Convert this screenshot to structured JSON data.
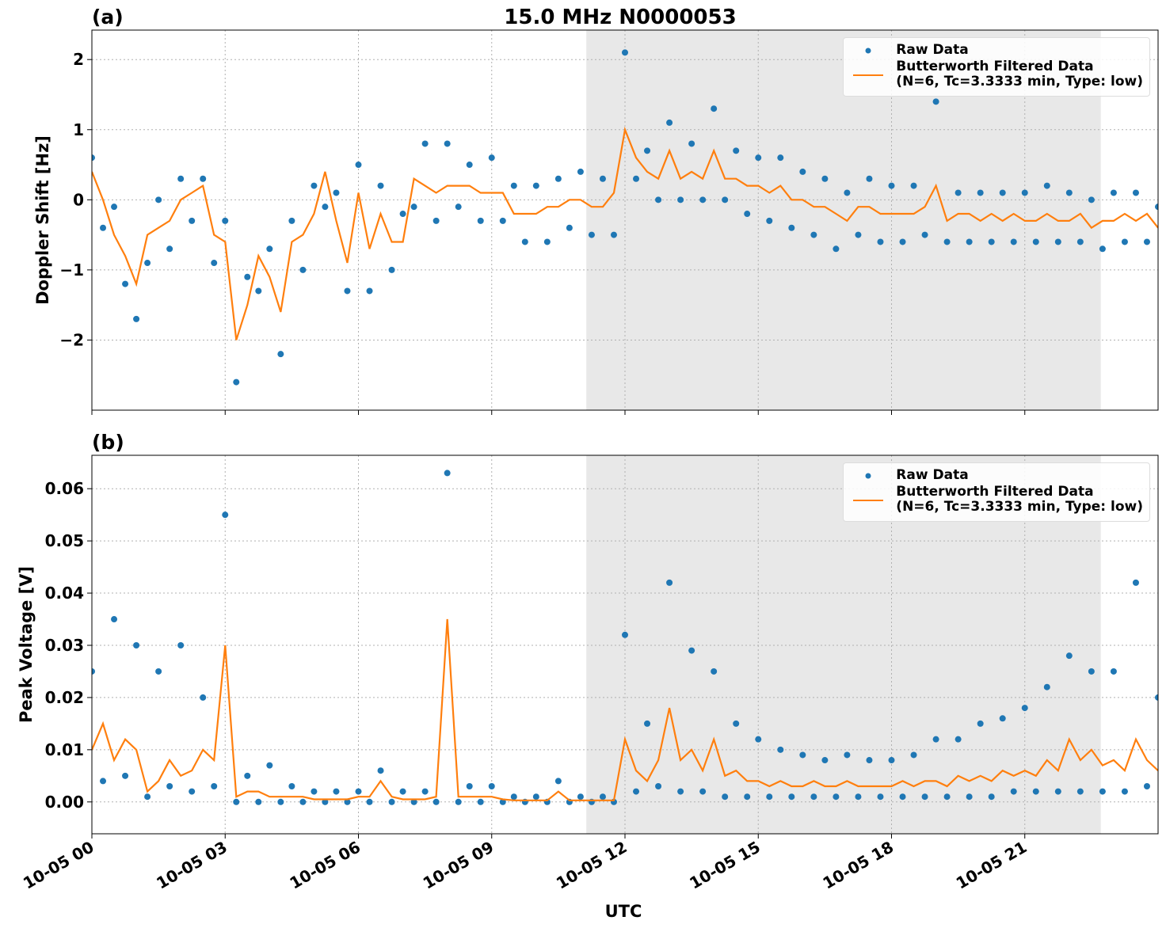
{
  "chart_data": [
    {
      "type": "scatter_line",
      "title": "15.0 MHz N0000053",
      "panel_label": "(a)",
      "ylabel": "Doppler Shift [Hz]",
      "x": [
        0,
        0.25,
        0.5,
        0.75,
        1,
        1.25,
        1.5,
        1.75,
        2,
        2.25,
        2.5,
        2.75,
        3,
        3.25,
        3.5,
        3.75,
        4,
        4.25,
        4.5,
        4.75,
        5,
        5.25,
        5.5,
        5.75,
        6,
        6.25,
        6.5,
        6.75,
        7,
        7.25,
        7.5,
        7.75,
        8,
        8.25,
        8.5,
        8.75,
        9,
        9.25,
        9.5,
        9.75,
        10,
        10.25,
        10.5,
        10.75,
        11,
        11.25,
        11.5,
        11.75,
        12,
        12.25,
        12.5,
        12.75,
        13,
        13.25,
        13.5,
        13.75,
        14,
        14.25,
        14.5,
        14.75,
        15,
        15.25,
        15.5,
        15.75,
        16,
        16.25,
        16.5,
        16.75,
        17,
        17.25,
        17.5,
        17.75,
        18,
        18.25,
        18.5,
        18.75,
        19,
        19.25,
        19.5,
        19.75,
        20,
        20.25,
        20.5,
        20.75,
        21,
        21.25,
        21.5,
        21.75,
        22,
        22.25,
        22.5,
        22.75,
        23,
        23.25,
        23.5,
        23.75,
        24
      ],
      "series": [
        {
          "name": "Raw Data",
          "color": "#1f77b4",
          "style": "dots",
          "values": [
            0.6,
            -0.4,
            -0.1,
            -1.2,
            -1.7,
            -0.9,
            0.0,
            -0.7,
            0.3,
            -0.3,
            0.3,
            -0.9,
            -0.3,
            -2.6,
            -1.1,
            -1.3,
            -0.7,
            -2.2,
            -0.3,
            -1.0,
            0.2,
            -0.1,
            0.1,
            -1.3,
            0.5,
            -1.3,
            0.2,
            -1.0,
            -0.2,
            -0.1,
            0.8,
            -0.3,
            0.8,
            -0.1,
            0.5,
            -0.3,
            0.6,
            -0.3,
            0.2,
            -0.6,
            0.2,
            -0.6,
            0.3,
            -0.4,
            0.4,
            -0.5,
            0.3,
            -0.5,
            2.1,
            0.3,
            0.7,
            0.0,
            1.1,
            0.0,
            0.8,
            0.0,
            1.3,
            0.0,
            0.7,
            -0.2,
            0.6,
            -0.3,
            0.6,
            -0.4,
            0.4,
            -0.5,
            0.3,
            -0.7,
            0.1,
            -0.5,
            0.3,
            -0.6,
            0.2,
            -0.6,
            0.2,
            -0.5,
            1.4,
            -0.6,
            0.1,
            -0.6,
            0.1,
            -0.6,
            0.1,
            -0.6,
            0.1,
            -0.6,
            0.2,
            -0.6,
            0.1,
            -0.6,
            0.0,
            -0.7,
            0.1,
            -0.6,
            0.1,
            -0.6,
            -0.1
          ]
        },
        {
          "name": "Butterworth Filtered Data\n(N=6, Tc=3.3333 min, Type: low)",
          "color": "#ff7f0e",
          "style": "line",
          "values": [
            0.4,
            0.0,
            -0.5,
            -0.8,
            -1.2,
            -0.5,
            -0.4,
            -0.3,
            0.0,
            0.1,
            0.2,
            -0.5,
            -0.6,
            -2.0,
            -1.5,
            -0.8,
            -1.1,
            -1.6,
            -0.6,
            -0.5,
            -0.2,
            0.4,
            -0.3,
            -0.9,
            0.1,
            -0.7,
            -0.2,
            -0.6,
            -0.6,
            0.3,
            0.2,
            0.1,
            0.2,
            0.2,
            0.2,
            0.1,
            0.1,
            0.1,
            -0.2,
            -0.2,
            -0.2,
            -0.1,
            -0.1,
            0.0,
            0.0,
            -0.1,
            -0.1,
            0.1,
            1.0,
            0.6,
            0.4,
            0.3,
            0.7,
            0.3,
            0.4,
            0.3,
            0.7,
            0.3,
            0.3,
            0.2,
            0.2,
            0.1,
            0.2,
            0.0,
            0.0,
            -0.1,
            -0.1,
            -0.2,
            -0.3,
            -0.1,
            -0.1,
            -0.2,
            -0.2,
            -0.2,
            -0.2,
            -0.1,
            0.2,
            -0.3,
            -0.2,
            -0.2,
            -0.3,
            -0.2,
            -0.3,
            -0.2,
            -0.3,
            -0.3,
            -0.2,
            -0.3,
            -0.3,
            -0.2,
            -0.4,
            -0.3,
            -0.3,
            -0.2,
            -0.3,
            -0.2,
            -0.4
          ]
        }
      ],
      "shaded_span": [
        11.13,
        22.71
      ],
      "shade_color": "#e8e8e8",
      "xlim": [
        0,
        24
      ],
      "xticks": [
        0,
        3,
        6,
        9,
        12,
        15,
        18,
        21
      ],
      "ylim": [
        -3.0,
        2.42
      ],
      "yticks": [
        2,
        1,
        0,
        {
          "value": -1,
          "label": "−1"
        },
        {
          "value": -2,
          "label": "−2"
        }
      ],
      "grid": true,
      "legend": "upper right"
    },
    {
      "type": "scatter_line",
      "panel_label": "(b)",
      "ylabel": "Peak Voltage [V]",
      "xlabel": "UTC",
      "x": [
        0,
        0.25,
        0.5,
        0.75,
        1,
        1.25,
        1.5,
        1.75,
        2,
        2.25,
        2.5,
        2.75,
        3,
        3.25,
        3.5,
        3.75,
        4,
        4.25,
        4.5,
        4.75,
        5,
        5.25,
        5.5,
        5.75,
        6,
        6.25,
        6.5,
        6.75,
        7,
        7.25,
        7.5,
        7.75,
        8,
        8.25,
        8.5,
        8.75,
        9,
        9.25,
        9.5,
        9.75,
        10,
        10.25,
        10.5,
        10.75,
        11,
        11.25,
        11.5,
        11.75,
        12,
        12.25,
        12.5,
        12.75,
        13,
        13.25,
        13.5,
        13.75,
        14,
        14.25,
        14.5,
        14.75,
        15,
        15.25,
        15.5,
        15.75,
        16,
        16.25,
        16.5,
        16.75,
        17,
        17.25,
        17.5,
        17.75,
        18,
        18.25,
        18.5,
        18.75,
        19,
        19.25,
        19.5,
        19.75,
        20,
        20.25,
        20.5,
        20.75,
        21,
        21.25,
        21.5,
        21.75,
        22,
        22.25,
        22.5,
        22.75,
        23,
        23.25,
        23.5,
        23.75,
        24
      ],
      "series": [
        {
          "name": "Raw Data",
          "color": "#1f77b4",
          "style": "dots",
          "values": [
            0.025,
            0.004,
            0.035,
            0.005,
            0.03,
            0.001,
            0.025,
            0.003,
            0.03,
            0.002,
            0.02,
            0.003,
            0.055,
            0.0,
            0.005,
            0.0,
            0.007,
            0.0,
            0.003,
            0.0,
            0.002,
            0.0,
            0.002,
            0.0,
            0.002,
            0.0,
            0.006,
            0.0,
            0.002,
            0.0,
            0.002,
            0.0,
            0.063,
            0.0,
            0.003,
            0.0,
            0.003,
            0.0,
            0.001,
            0.0,
            0.001,
            0.0,
            0.004,
            0.0,
            0.001,
            0.0,
            0.001,
            0.0,
            0.032,
            0.002,
            0.015,
            0.003,
            0.042,
            0.002,
            0.029,
            0.002,
            0.025,
            0.001,
            0.015,
            0.001,
            0.012,
            0.001,
            0.01,
            0.001,
            0.009,
            0.001,
            0.008,
            0.001,
            0.009,
            0.001,
            0.008,
            0.001,
            0.008,
            0.001,
            0.009,
            0.001,
            0.012,
            0.001,
            0.012,
            0.001,
            0.015,
            0.001,
            0.016,
            0.002,
            0.018,
            0.002,
            0.022,
            0.002,
            0.028,
            0.002,
            0.025,
            0.002,
            0.025,
            0.002,
            0.042,
            0.003,
            0.02
          ]
        },
        {
          "name": "Butterworth Filtered Data\n(N=6, Tc=3.3333 min, Type: low)",
          "color": "#ff7f0e",
          "style": "line",
          "values": [
            0.01,
            0.015,
            0.008,
            0.012,
            0.01,
            0.002,
            0.004,
            0.008,
            0.005,
            0.006,
            0.01,
            0.008,
            0.03,
            0.001,
            0.002,
            0.002,
            0.001,
            0.001,
            0.001,
            0.001,
            0.0005,
            0.0005,
            0.0005,
            0.0005,
            0.001,
            0.001,
            0.004,
            0.001,
            0.0005,
            0.0005,
            0.0005,
            0.001,
            0.035,
            0.001,
            0.001,
            0.001,
            0.001,
            0.0005,
            0.0003,
            0.0003,
            0.0003,
            0.0003,
            0.002,
            0.0003,
            0.0003,
            0.0003,
            0.0003,
            0.0003,
            0.012,
            0.006,
            0.004,
            0.008,
            0.018,
            0.008,
            0.01,
            0.006,
            0.012,
            0.005,
            0.006,
            0.004,
            0.004,
            0.003,
            0.004,
            0.003,
            0.003,
            0.004,
            0.003,
            0.003,
            0.004,
            0.003,
            0.003,
            0.003,
            0.003,
            0.004,
            0.003,
            0.004,
            0.004,
            0.003,
            0.005,
            0.004,
            0.005,
            0.004,
            0.006,
            0.005,
            0.006,
            0.005,
            0.008,
            0.006,
            0.012,
            0.008,
            0.01,
            0.007,
            0.008,
            0.006,
            0.012,
            0.008,
            0.006
          ]
        }
      ],
      "shaded_span": [
        11.13,
        22.71
      ],
      "shade_color": "#e8e8e8",
      "xlim": [
        0,
        24
      ],
      "xticks": [
        {
          "value": 0,
          "label": "10-05 00"
        },
        {
          "value": 3,
          "label": "10-05 03"
        },
        {
          "value": 6,
          "label": "10-05 06"
        },
        {
          "value": 9,
          "label": "10-05 09"
        },
        {
          "value": 12,
          "label": "10-05 12"
        },
        {
          "value": 15,
          "label": "10-05 15"
        },
        {
          "value": 18,
          "label": "10-05 18"
        },
        {
          "value": 21,
          "label": "10-05 21"
        }
      ],
      "ylim": [
        -0.0061,
        0.0664
      ],
      "yticks": [
        {
          "value": 0,
          "label": "0.00"
        },
        {
          "value": 0.01,
          "label": "0.01"
        },
        {
          "value": 0.02,
          "label": "0.02"
        },
        {
          "value": 0.03,
          "label": "0.03"
        },
        {
          "value": 0.04,
          "label": "0.04"
        },
        {
          "value": 0.05,
          "label": "0.05"
        },
        {
          "value": 0.06,
          "label": "0.06"
        }
      ],
      "grid": true,
      "legend": "upper right"
    }
  ]
}
